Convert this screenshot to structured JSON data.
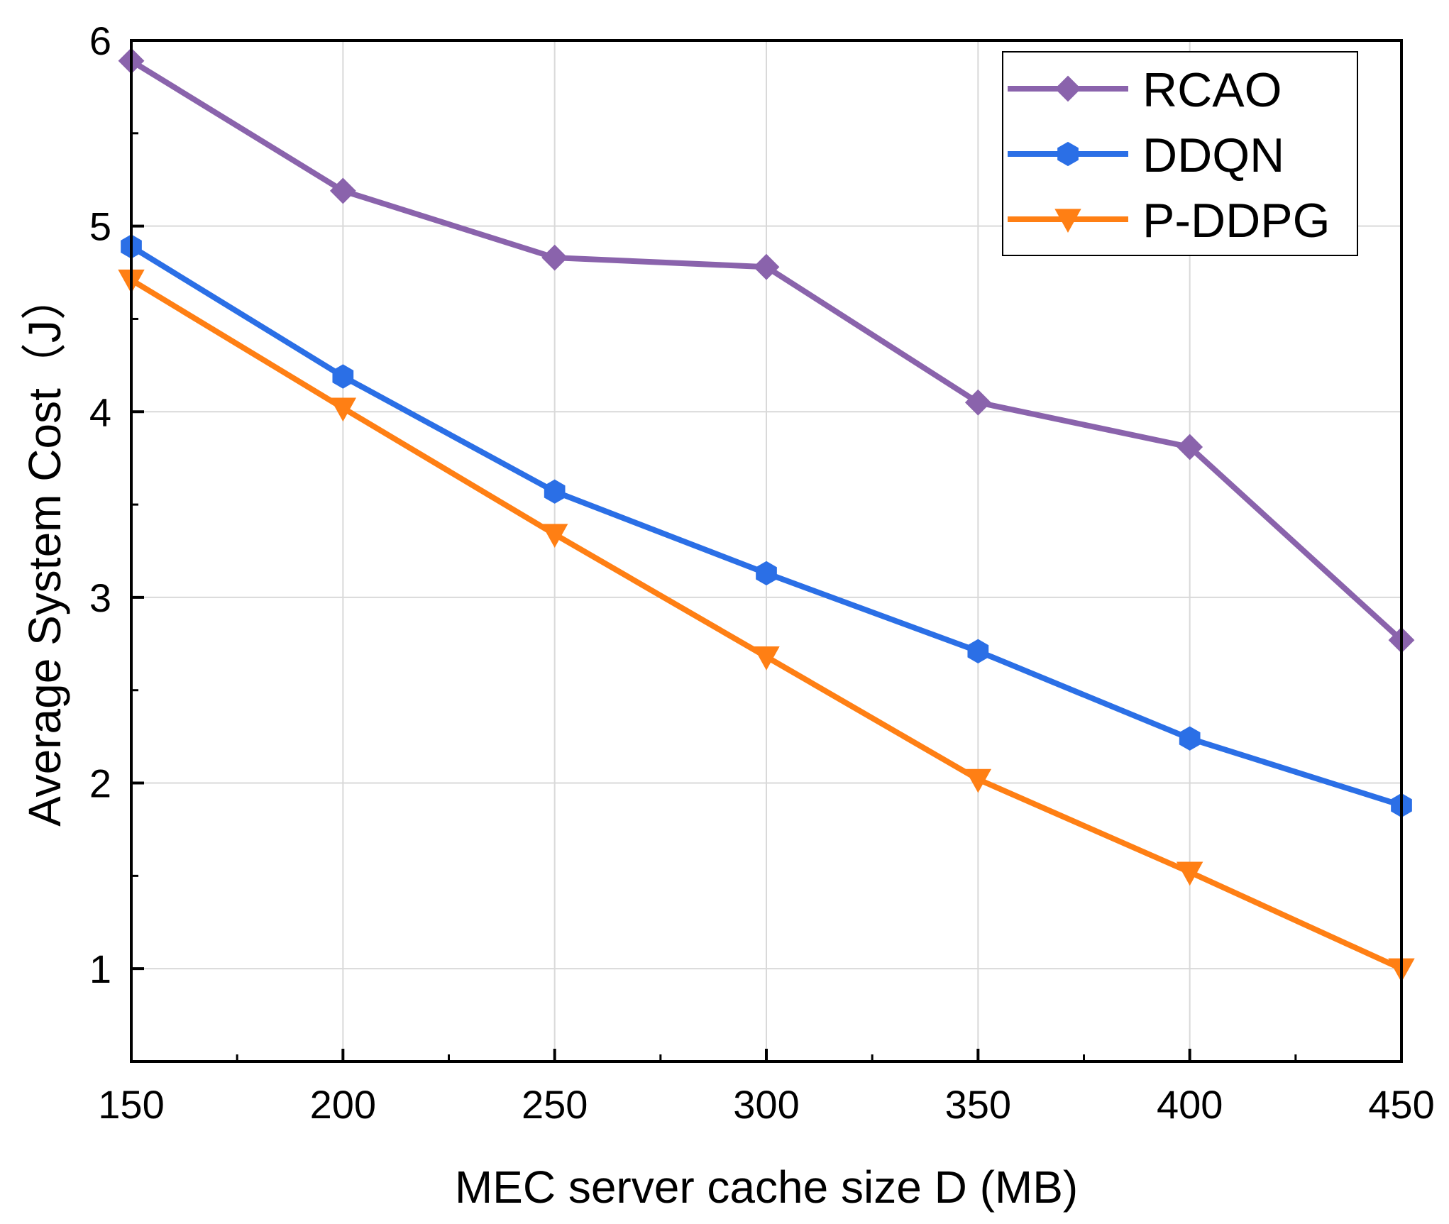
{
  "chart_data": {
    "type": "line",
    "xlabel": "MEC server cache size D (MB)",
    "ylabel": "Average System Cost（J）",
    "x": [
      150,
      200,
      250,
      300,
      350,
      400,
      450
    ],
    "xlim": [
      150,
      450
    ],
    "ylim": [
      0.5,
      6
    ],
    "xticks": [
      "150",
      "200",
      "250",
      "300",
      "350",
      "400",
      "450"
    ],
    "yticks": [
      "1",
      "2",
      "3",
      "4",
      "5",
      "6"
    ],
    "grid": true,
    "legend_position": "top-right",
    "series": [
      {
        "name": "RCAO",
        "color": "#8a63ac",
        "marker": "diamond",
        "values": [
          5.89,
          5.19,
          4.83,
          4.78,
          4.05,
          3.81,
          2.77
        ]
      },
      {
        "name": "DDQN",
        "color": "#2b6fe6",
        "marker": "hexagon",
        "values": [
          4.89,
          4.19,
          3.57,
          3.13,
          2.71,
          2.24,
          1.88
        ]
      },
      {
        "name": "P-DDPG",
        "color": "#ff7f14",
        "marker": "triangle-down",
        "values": [
          4.71,
          4.02,
          3.34,
          2.68,
          2.02,
          1.52,
          1.0
        ]
      }
    ]
  }
}
